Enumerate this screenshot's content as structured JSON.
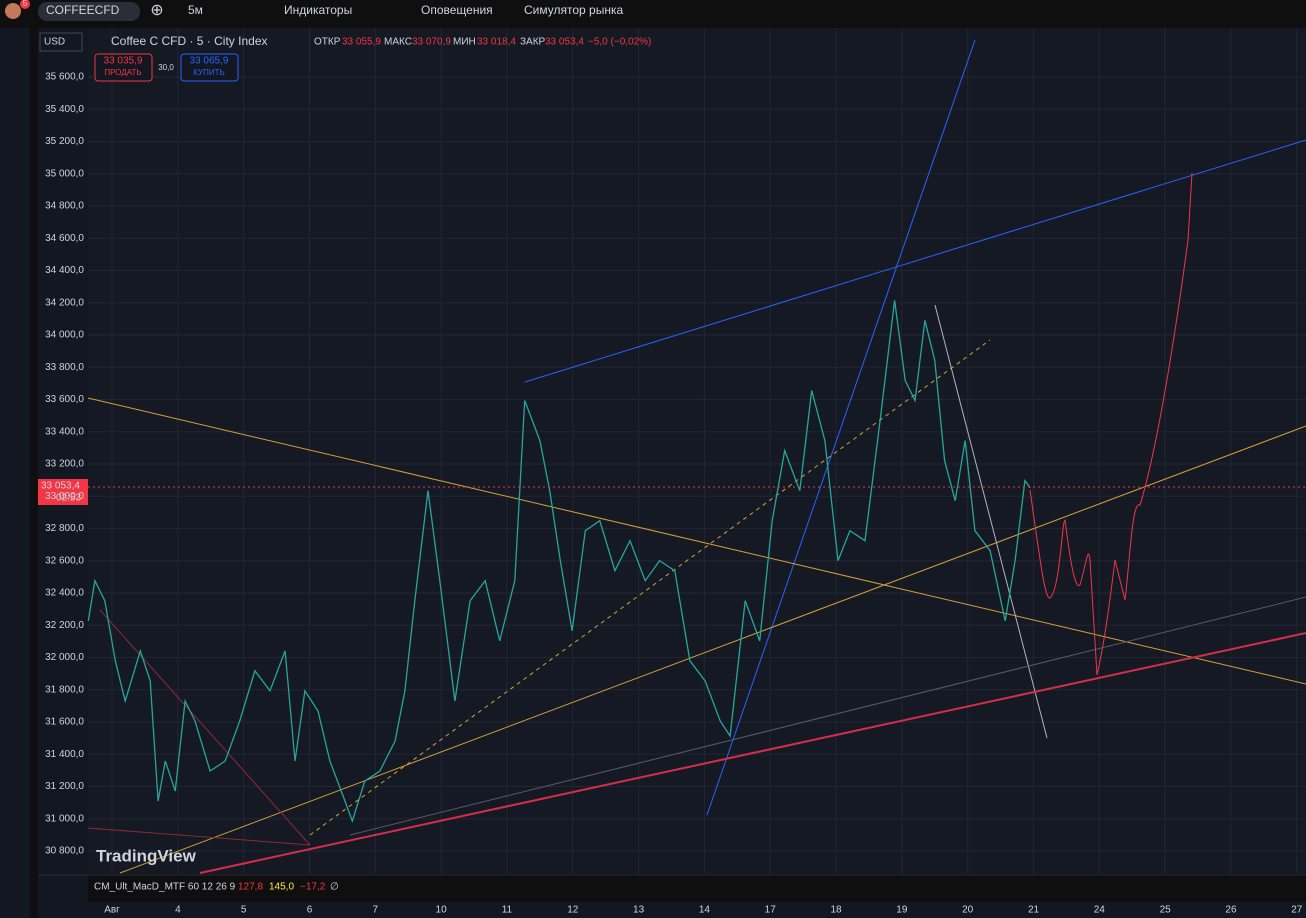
{
  "toolbar": {
    "notifications": "5",
    "symbol": "COFFEECFD",
    "interval": "5м",
    "indicators": "Индикаторы",
    "alerts": "Оповещения",
    "replay": "Симулятор рынка"
  },
  "currency": "USD",
  "legend": {
    "title": "Coffee C CFD · 5 · City Index",
    "open_label": "ОТКР",
    "open": "33 055,9",
    "high_label": "МАКС",
    "high": "33 070,9",
    "low_label": "МИН",
    "low": "33 018,4",
    "close_label": "ЗАКР",
    "close": "33 053,4",
    "change": "−5,0 (−0,02%)"
  },
  "trade": {
    "sell_price": "33 035,9",
    "sell": "ПРОДАТЬ",
    "spread": "30,0",
    "buy_price": "33 065,9",
    "buy": "КУПИТЬ"
  },
  "price_scale": {
    "last_price": "33 053,4",
    "countdown": "02:53"
  },
  "indicator": {
    "name": "CM_Ult_MacD_MTF 60 12 26 9",
    "v1": "127,8",
    "v2": "145,0",
    "v3": "−17,2",
    "v4": "∅"
  },
  "watermark": "TradingView",
  "chart_data": {
    "type": "line",
    "color": "#26a69a",
    "x": [
      -0.36,
      -0.26,
      -0.11,
      0.05,
      0.2,
      0.43,
      0.58,
      0.7,
      0.81,
      0.96,
      1.11,
      1.26,
      1.49,
      1.72,
      1.94,
      2.17,
      2.4,
      2.63,
      2.78,
      2.93,
      3.13,
      3.31,
      3.54,
      3.65,
      3.84,
      4.07,
      4.3,
      4.45,
      4.6,
      4.8,
      4.98,
      5.21,
      5.44,
      5.67,
      5.89,
      6.12,
      6.27,
      6.5,
      6.65,
      6.81,
      6.99,
      7.19,
      7.41,
      7.64,
      7.87,
      8.1,
      8.32,
      8.55,
      8.78,
      9.01,
      9.24,
      9.39,
      9.62,
      9.84,
      10.03,
      10.22,
      10.45,
      10.63,
      10.83,
      11.03,
      11.21,
      11.44,
      11.67,
      11.89,
      12.05,
      12.2,
      12.35,
      12.5,
      12.65,
      12.81,
      12.96,
      13.11,
      13.34,
      13.57,
      13.72,
      13.87,
      13.95
    ],
    "values": [
      32227,
      32476,
      32352,
      31979,
      31730,
      32041,
      31855,
      31109,
      31358,
      31171,
      31730,
      31606,
      31296,
      31358,
      31606,
      31917,
      31793,
      32041,
      31358,
      31793,
      31668,
      31358,
      31109,
      30985,
      31233,
      31296,
      31482,
      31793,
      32352,
      33035,
      32476,
      31730,
      32352,
      32476,
      32103,
      32476,
      33594,
      33345,
      33035,
      32600,
      32165,
      32786,
      32848,
      32538,
      32724,
      32476,
      32600,
      32538,
      31979,
      31855,
      31606,
      31513,
      32352,
      32103,
      32848,
      33283,
      33035,
      33656,
      33345,
      32600,
      32786,
      32724,
      33470,
      34215,
      33718,
      33594,
      34091,
      33842,
      33221,
      32972,
      33345,
      32786,
      32662,
      32227,
      32600,
      33097,
      33053
    ],
    "xlim": [
      -0.365,
      18.14
    ],
    "ylim": [
      30657,
      35904
    ],
    "xticks": [
      {
        "value": 0,
        "label": "Авг"
      },
      {
        "value": 1,
        "label": "4"
      },
      {
        "value": 2,
        "label": "5"
      },
      {
        "value": 3,
        "label": "6"
      },
      {
        "value": 4,
        "label": "7"
      },
      {
        "value": 5,
        "label": "10"
      },
      {
        "value": 6,
        "label": "11"
      },
      {
        "value": 7,
        "label": "12"
      },
      {
        "value": 8,
        "label": "13"
      },
      {
        "value": 9,
        "label": "14"
      },
      {
        "value": 10,
        "label": "17"
      },
      {
        "value": 11,
        "label": "18"
      },
      {
        "value": 12,
        "label": "19"
      },
      {
        "value": 13,
        "label": "20"
      },
      {
        "value": 14,
        "label": "21"
      },
      {
        "value": 15,
        "label": "24"
      },
      {
        "value": 16,
        "label": "25"
      },
      {
        "value": 17,
        "label": "26"
      },
      {
        "value": 18,
        "label": "27"
      }
    ],
    "yticks": [
      {
        "value": 30800,
        "label": "30 800,0"
      },
      {
        "value": 31000,
        "label": "31 000,0"
      },
      {
        "value": 31200,
        "label": "31 200,0"
      },
      {
        "value": 31400,
        "label": "31 400,0"
      },
      {
        "value": 31600,
        "label": "31 600,0"
      },
      {
        "value": 31800,
        "label": "31 800,0"
      },
      {
        "value": 32000,
        "label": "32 000,0"
      },
      {
        "value": 32200,
        "label": "32 200,0"
      },
      {
        "value": 32400,
        "label": "32 400,0"
      },
      {
        "value": 32600,
        "label": "32 600,0"
      },
      {
        "value": 32800,
        "label": "32 800,0"
      },
      {
        "value": 33000,
        "label": "33 000,0"
      },
      {
        "value": 33200,
        "label": "33 200,0"
      },
      {
        "value": 33400,
        "label": "33 400,0"
      },
      {
        "value": 33600,
        "label": "33 600,0"
      },
      {
        "value": 33800,
        "label": "33 800,0"
      },
      {
        "value": 34000,
        "label": "34 000,0"
      },
      {
        "value": 34200,
        "label": "34 200,0"
      },
      {
        "value": 34400,
        "label": "34 400,0"
      },
      {
        "value": 34600,
        "label": "34 600,0"
      },
      {
        "value": 34800,
        "label": "34 800,0"
      },
      {
        "value": 35000,
        "label": "35 000,0"
      },
      {
        "value": 35200,
        "label": "35 200,0"
      },
      {
        "value": 35400,
        "label": "35 400,0"
      },
      {
        "value": 35600,
        "label": "35 600,0"
      }
    ],
    "grid": true
  }
}
